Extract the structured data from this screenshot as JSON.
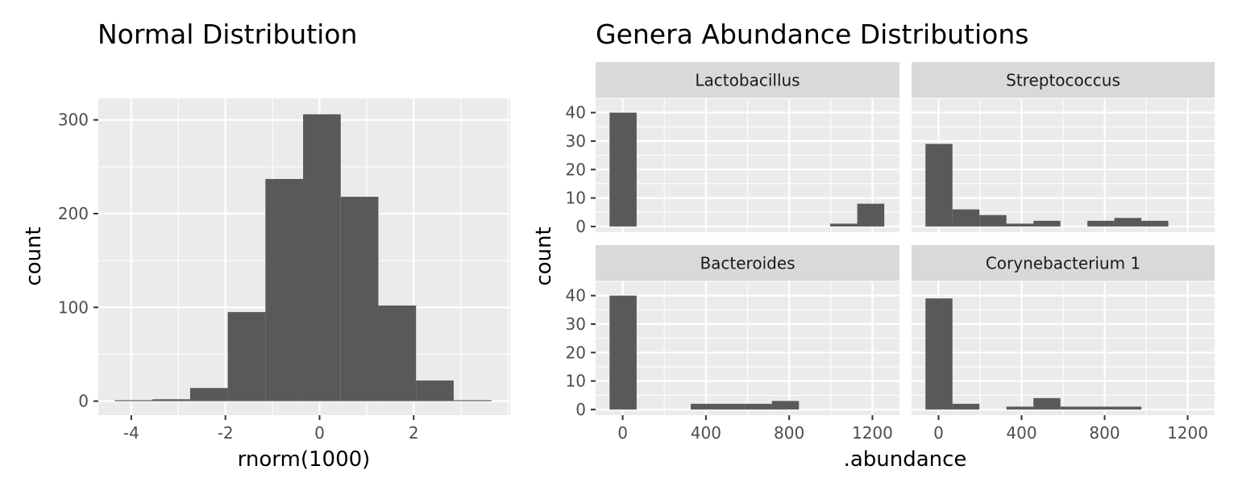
{
  "chart_data": [
    {
      "type": "bar",
      "title": "Normal Distribution",
      "xlabel": "rnorm(1000)",
      "ylabel": "count",
      "xlim": [
        -4.7,
        4.05
      ],
      "ylim": [
        -15,
        323
      ],
      "x_ticks": [
        -4,
        -2,
        0,
        2
      ],
      "y_ticks": [
        0,
        100,
        200,
        300
      ],
      "grid": true,
      "bins": [
        {
          "x0": -4.35,
          "x1": -3.55,
          "count": 1
        },
        {
          "x0": -3.55,
          "x1": -2.75,
          "count": 2
        },
        {
          "x0": -2.75,
          "x1": -1.95,
          "count": 14
        },
        {
          "x0": -1.95,
          "x1": -1.15,
          "count": 95
        },
        {
          "x0": -1.15,
          "x1": -0.35,
          "count": 237
        },
        {
          "x0": -0.35,
          "x1": 0.45,
          "count": 306
        },
        {
          "x0": 0.45,
          "x1": 1.25,
          "count": 218
        },
        {
          "x0": 1.25,
          "x1": 2.05,
          "count": 102
        },
        {
          "x0": 2.05,
          "x1": 2.85,
          "count": 22
        },
        {
          "x0": 2.85,
          "x1": 3.65,
          "count": 1
        }
      ]
    },
    {
      "type": "bar",
      "title": "Genera Abundance Distributions",
      "xlabel": ".abundance",
      "ylabel": "count",
      "xlim": [
        -130,
        1330
      ],
      "ylim": [
        -2,
        45
      ],
      "x_ticks": [
        0,
        400,
        800,
        1200
      ],
      "y_ticks": [
        0,
        10,
        20,
        30,
        40
      ],
      "grid": true,
      "facets": [
        {
          "name": "Lactobacillus",
          "bins": [
            {
              "x0": -63,
              "x1": 67,
              "count": 40
            },
            {
              "x0": 997,
              "x1": 1127,
              "count": 1
            },
            {
              "x0": 1127,
              "x1": 1257,
              "count": 8
            }
          ]
        },
        {
          "name": "Streptococcus",
          "bins": [
            {
              "x0": -63,
              "x1": 67,
              "count": 29
            },
            {
              "x0": 67,
              "x1": 197,
              "count": 6
            },
            {
              "x0": 197,
              "x1": 327,
              "count": 4
            },
            {
              "x0": 327,
              "x1": 457,
              "count": 1
            },
            {
              "x0": 457,
              "x1": 587,
              "count": 2
            },
            {
              "x0": 717,
              "x1": 847,
              "count": 2
            },
            {
              "x0": 847,
              "x1": 977,
              "count": 3
            },
            {
              "x0": 977,
              "x1": 1107,
              "count": 2
            }
          ]
        },
        {
          "name": "Bacteroides",
          "bins": [
            {
              "x0": -63,
              "x1": 67,
              "count": 40
            },
            {
              "x0": 327,
              "x1": 457,
              "count": 2
            },
            {
              "x0": 457,
              "x1": 587,
              "count": 2
            },
            {
              "x0": 587,
              "x1": 717,
              "count": 2
            },
            {
              "x0": 717,
              "x1": 847,
              "count": 3
            }
          ]
        },
        {
          "name": "Corynebacterium 1",
          "bins": [
            {
              "x0": -63,
              "x1": 67,
              "count": 39
            },
            {
              "x0": 67,
              "x1": 197,
              "count": 2
            },
            {
              "x0": 327,
              "x1": 457,
              "count": 1
            },
            {
              "x0": 457,
              "x1": 587,
              "count": 4
            },
            {
              "x0": 587,
              "x1": 717,
              "count": 1
            },
            {
              "x0": 717,
              "x1": 847,
              "count": 1
            },
            {
              "x0": 847,
              "x1": 977,
              "count": 1
            }
          ]
        }
      ]
    }
  ],
  "colors": {
    "bar_fill": "#595959",
    "panel_background": "#ebebeb",
    "grid_major": "#ffffff",
    "strip_background": "#d9d9d9",
    "axis_text": "#4d4d4d",
    "text": "#000000"
  }
}
